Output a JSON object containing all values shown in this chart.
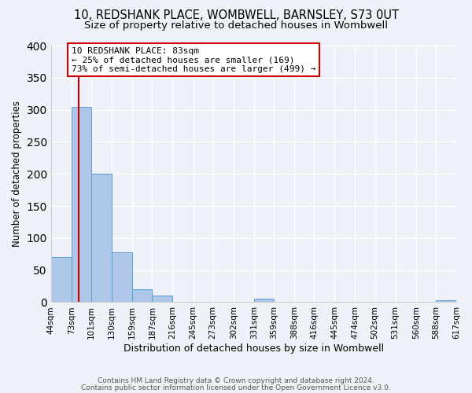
{
  "title1": "10, REDSHANK PLACE, WOMBWELL, BARNSLEY, S73 0UT",
  "title2": "Size of property relative to detached houses in Wombwell",
  "xlabel": "Distribution of detached houses by size in Wombwell",
  "ylabel": "Number of detached properties",
  "bin_edges": [
    44,
    73,
    101,
    130,
    159,
    187,
    216,
    245,
    273,
    302,
    331,
    359,
    388,
    416,
    445,
    474,
    502,
    531,
    560,
    588,
    617
  ],
  "bin_labels": [
    "44sqm",
    "73sqm",
    "101sqm",
    "130sqm",
    "159sqm",
    "187sqm",
    "216sqm",
    "245sqm",
    "273sqm",
    "302sqm",
    "331sqm",
    "359sqm",
    "388sqm",
    "416sqm",
    "445sqm",
    "474sqm",
    "502sqm",
    "531sqm",
    "560sqm",
    "588sqm",
    "617sqm"
  ],
  "counts": [
    70,
    305,
    200,
    78,
    20,
    10,
    0,
    0,
    0,
    0,
    5,
    0,
    0,
    0,
    0,
    0,
    0,
    0,
    0,
    3
  ],
  "bar_color": "#aec6e8",
  "bar_edge_color": "#5a9fd4",
  "property_size": 83,
  "vline_color": "#cc0000",
  "annotation_title": "10 REDSHANK PLACE: 83sqm",
  "annotation_line1": "← 25% of detached houses are smaller (169)",
  "annotation_line2": "73% of semi-detached houses are larger (499) →",
  "annotation_box_color": "#ffffff",
  "annotation_box_edge_color": "#cc0000",
  "ylim": [
    0,
    400
  ],
  "yticks": [
    0,
    50,
    100,
    150,
    200,
    250,
    300,
    350,
    400
  ],
  "footer1": "Contains HM Land Registry data © Crown copyright and database right 2024.",
  "footer2": "Contains public sector information licensed under the Open Government Licence v3.0.",
  "bg_color": "#eef2f8",
  "title1_fontsize": 10.5,
  "title2_fontsize": 9.5
}
